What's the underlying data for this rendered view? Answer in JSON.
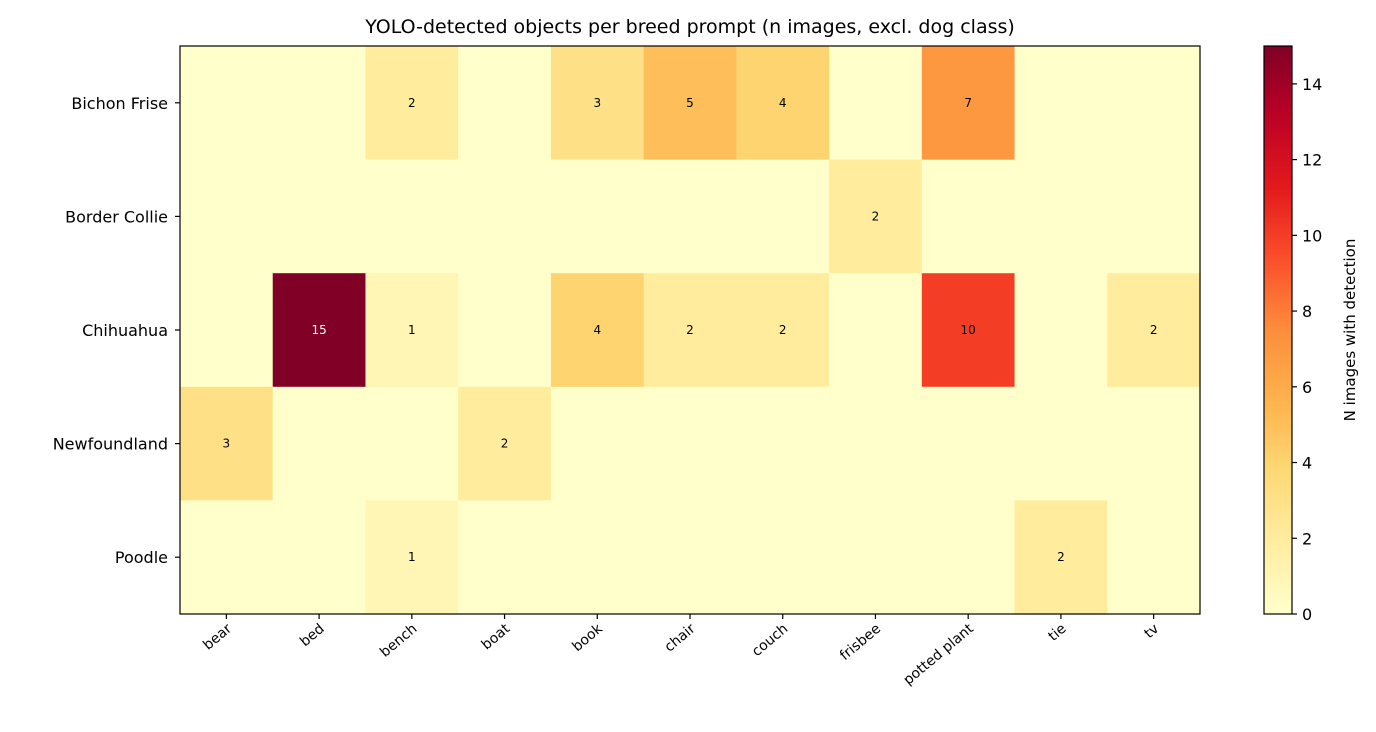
{
  "chart_data": {
    "type": "heatmap",
    "title": "YOLO-detected objects per breed prompt (n images, excl. dog class)",
    "rows": [
      "Bichon Frise",
      "Border Collie",
      "Chihuahua",
      "Newfoundland",
      "Poodle"
    ],
    "columns": [
      "bear",
      "bed",
      "bench",
      "boat",
      "book",
      "chair",
      "couch",
      "frisbee",
      "potted plant",
      "tie",
      "tv"
    ],
    "values": [
      [
        0,
        0,
        2,
        0,
        3,
        5,
        4,
        0,
        7,
        0,
        0
      ],
      [
        0,
        0,
        0,
        0,
        0,
        0,
        0,
        2,
        0,
        0,
        0
      ],
      [
        0,
        15,
        1,
        0,
        4,
        2,
        2,
        0,
        10,
        0,
        2
      ],
      [
        3,
        0,
        0,
        2,
        0,
        0,
        0,
        0,
        0,
        0,
        0
      ],
      [
        0,
        0,
        1,
        0,
        0,
        0,
        0,
        0,
        0,
        2,
        0
      ]
    ],
    "value_range": [
      0,
      15
    ],
    "colormap": "YlOrRd",
    "show_zero_labels": false,
    "colorbar": {
      "label": "N images with detection",
      "ticks": [
        0,
        2,
        4,
        6,
        8,
        10,
        12,
        14
      ]
    }
  }
}
